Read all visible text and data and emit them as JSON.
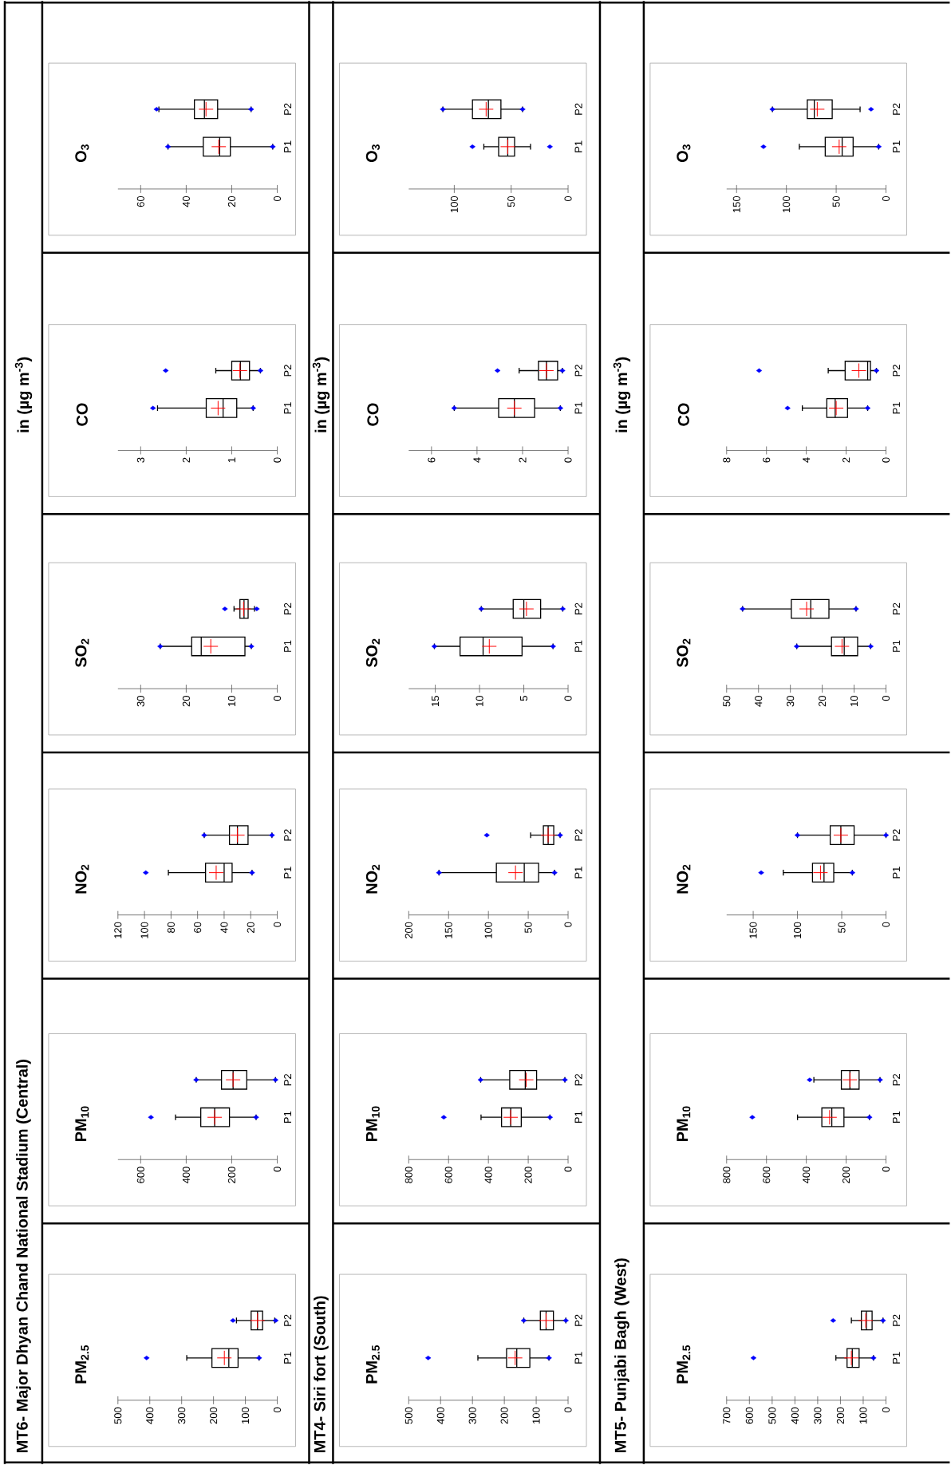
{
  "chart_data": [
    {
      "type": "box",
      "orientation": "horizontal",
      "title": "PM$_{2.5}$",
      "annotations": [
        "MT6- Major Dhyan Chand National Stadium (Central)",
        "in (µg m$^{-3}$)"
      ],
      "categories": [
        "P2",
        "P1"
      ],
      "xlim": [
        500,
        0
      ],
      "xticks": [
        0,
        100,
        200,
        300,
        400,
        500
      ],
      "boxes": [
        {
          "low": 8,
          "q1": 46,
          "median": 62,
          "q3": 82,
          "high": 128,
          "mean": 62,
          "outliers": [
            139,
            5
          ]
        },
        {
          "low": 57,
          "q1": 123,
          "median": 152,
          "q3": 205,
          "high": 284,
          "mean": 166,
          "outliers": [
            410,
            57
          ]
        }
      ]
    },
    {
      "type": "box",
      "orientation": "horizontal",
      "title": "PM$_{10}$",
      "categories": [
        "P2",
        "P1"
      ],
      "xlim": [
        700,
        0
      ],
      "xticks": [
        0,
        200,
        400,
        600
      ],
      "boxes": [
        {
          "low": 8,
          "q1": 134,
          "median": 194,
          "q3": 245,
          "high": 356,
          "mean": 194,
          "outliers": [
            356,
            8
          ]
        },
        {
          "low": 93,
          "q1": 210,
          "median": 275,
          "q3": 336,
          "high": 447,
          "mean": 275,
          "outliers": [
            555,
            93
          ]
        }
      ]
    },
    {
      "type": "box",
      "orientation": "horizontal",
      "title": "NO$_{2}$",
      "categories": [
        "P2",
        "P1"
      ],
      "xlim": [
        120,
        0
      ],
      "xticks": [
        0,
        20,
        40,
        60,
        80,
        100,
        120
      ],
      "boxes": [
        {
          "low": 4,
          "q1": 22,
          "median": 30,
          "q3": 36,
          "high": 55,
          "mean": 30,
          "outliers": [
            55,
            4
          ]
        },
        {
          "low": 19,
          "q1": 34,
          "median": 40,
          "q3": 54,
          "high": 82,
          "mean": 46,
          "outliers": [
            99,
            19
          ]
        }
      ]
    },
    {
      "type": "box",
      "orientation": "horizontal",
      "title": "SO$_{2}$",
      "categories": [
        "P2",
        "P1"
      ],
      "xlim": [
        35,
        0
      ],
      "xticks": [
        0,
        10,
        20,
        30
      ],
      "boxes": [
        {
          "low": 5,
          "q1": 6.4,
          "median": 7.3,
          "q3": 8.2,
          "high": 9.5,
          "mean": 7.4,
          "outliers": [
            11.5,
            4.5
          ]
        },
        {
          "low": 5.7,
          "q1": 7.1,
          "median": 16.7,
          "q3": 18.8,
          "high": 25.7,
          "mean": 14.6,
          "outliers": [
            25.7,
            5.7
          ]
        }
      ]
    },
    {
      "type": "box",
      "orientation": "horizontal",
      "title": "CO",
      "categories": [
        "P2",
        "P1"
      ],
      "xlim": [
        3.5,
        0
      ],
      "xticks": [
        0,
        1,
        2,
        3
      ],
      "boxes": [
        {
          "low": 0.37,
          "q1": 0.61,
          "median": 0.81,
          "q3": 1.0,
          "high": 1.35,
          "mean": 0.82,
          "outliers": [
            2.45,
            0.37
          ]
        },
        {
          "low": 0.53,
          "q1": 0.89,
          "median": 1.19,
          "q3": 1.56,
          "high": 2.63,
          "mean": 1.3,
          "outliers": [
            2.73,
            0.53
          ]
        }
      ]
    },
    {
      "type": "box",
      "orientation": "horizontal",
      "title": "O$_{3}$",
      "categories": [
        "P2",
        "P1"
      ],
      "xlim": [
        70,
        0
      ],
      "xticks": [
        0,
        20,
        40,
        60
      ],
      "boxes": [
        {
          "low": 11.5,
          "q1": 26.2,
          "median": 32,
          "q3": 36.4,
          "high": 52,
          "mean": 31.3,
          "outliers": [
            53,
            11.5
          ]
        },
        {
          "low": 2,
          "q1": 20.6,
          "median": 25.3,
          "q3": 32.5,
          "high": 48,
          "mean": 25.7,
          "outliers": [
            48,
            2
          ]
        }
      ]
    },
    {
      "type": "box",
      "orientation": "horizontal",
      "title": "PM$_{2.5}$",
      "annotations": [
        "MT4- Siri fort (South)",
        "in (µg m$^{-3}$)"
      ],
      "categories": [
        "P2",
        "P1"
      ],
      "xlim": [
        500,
        0
      ],
      "xticks": [
        0,
        100,
        200,
        300,
        400,
        500
      ],
      "boxes": [
        {
          "low": 7,
          "q1": 46,
          "median": 69,
          "q3": 87,
          "high": 139,
          "mean": 69,
          "outliers": [
            139,
            7
          ]
        },
        {
          "low": 60,
          "q1": 120,
          "median": 161,
          "q3": 193,
          "high": 283,
          "mean": 166,
          "outliers": [
            439,
            60
          ]
        }
      ]
    },
    {
      "type": "box",
      "orientation": "horizontal",
      "title": "PM$_{10}$",
      "categories": [
        "P2",
        "P1"
      ],
      "xlim": [
        800,
        0
      ],
      "xticks": [
        0,
        200,
        400,
        600,
        800
      ],
      "boxes": [
        {
          "low": 16,
          "q1": 158,
          "median": 215,
          "q3": 293,
          "high": 439,
          "mean": 210,
          "outliers": [
            439,
            16
          ]
        },
        {
          "low": 91,
          "q1": 235,
          "median": 288,
          "q3": 334,
          "high": 437,
          "mean": 288,
          "outliers": [
            624,
            91
          ]
        }
      ]
    },
    {
      "type": "box",
      "orientation": "horizontal",
      "title": "NO$_{2}$",
      "categories": [
        "P2",
        "P1"
      ],
      "xlim": [
        200,
        0
      ],
      "xticks": [
        0,
        50,
        100,
        150,
        200
      ],
      "boxes": [
        {
          "low": 10,
          "q1": 18,
          "median": 25,
          "q3": 31,
          "high": 47,
          "mean": 25,
          "outliers": [
            102,
            10
          ]
        },
        {
          "low": 17,
          "q1": 37,
          "median": 55,
          "q3": 90,
          "high": 162,
          "mean": 66,
          "outliers": [
            162,
            17
          ]
        }
      ]
    },
    {
      "type": "box",
      "orientation": "horizontal",
      "title": "SO$_{2}$",
      "categories": [
        "P2",
        "P1"
      ],
      "xlim": [
        18,
        0
      ],
      "xticks": [
        0,
        5,
        10,
        15
      ],
      "boxes": [
        {
          "low": 0.6,
          "q1": 3.1,
          "median": 5.0,
          "q3": 6.2,
          "high": 9.8,
          "mean": 4.7,
          "outliers": [
            9.8,
            0.6
          ]
        },
        {
          "low": 1.7,
          "q1": 5.2,
          "median": 9.6,
          "q3": 12.2,
          "high": 15.1,
          "mean": 8.9,
          "outliers": [
            15.1,
            1.7
          ]
        }
      ]
    },
    {
      "type": "box",
      "orientation": "horizontal",
      "title": "CO",
      "categories": [
        "P2",
        "P1"
      ],
      "xlim": [
        7,
        0
      ],
      "xticks": [
        0,
        2,
        4,
        6
      ],
      "boxes": [
        {
          "low": 0.25,
          "q1": 0.46,
          "median": 0.95,
          "q3": 1.3,
          "high": 2.15,
          "mean": 0.95,
          "outliers": [
            3.1,
            0.25
          ]
        },
        {
          "low": 0.34,
          "q1": 1.47,
          "median": 2.36,
          "q3": 3.05,
          "high": 5.0,
          "mean": 2.36,
          "outliers": [
            5.0,
            0.34
          ]
        }
      ]
    },
    {
      "type": "box",
      "orientation": "horizontal",
      "title": "O$_{3}$",
      "categories": [
        "P2",
        "P1"
      ],
      "xlim": [
        140,
        0
      ],
      "xticks": [
        0,
        50,
        100
      ],
      "boxes": [
        {
          "low": 40,
          "q1": 59,
          "median": 70,
          "q3": 84,
          "high": 110,
          "mean": 72,
          "outliers": [
            110,
            40
          ]
        },
        {
          "low": 33,
          "q1": 47,
          "median": 53,
          "q3": 61,
          "high": 74,
          "mean": 53,
          "outliers": [
            84,
            16
          ]
        }
      ]
    },
    {
      "type": "box",
      "orientation": "horizontal",
      "title": "PM$_{2.5}$",
      "annotations": [
        "MT5- Punjabi Bagh (West)",
        "in (µg m$^{-3}$)"
      ],
      "categories": [
        "P2",
        "P1"
      ],
      "xlim": [
        700,
        0
      ],
      "xticks": [
        0,
        100,
        200,
        300,
        400,
        500,
        600,
        700
      ],
      "boxes": [
        {
          "low": 13,
          "q1": 61,
          "median": 86,
          "q3": 108,
          "high": 152,
          "mean": 89,
          "outliers": [
            232,
            13
          ]
        },
        {
          "low": 55,
          "q1": 118,
          "median": 148,
          "q3": 171,
          "high": 220,
          "mean": 152,
          "outliers": [
            582,
            55
          ]
        }
      ]
    },
    {
      "type": "box",
      "orientation": "horizontal",
      "title": "PM$_{10}$",
      "categories": [
        "P2",
        "P1"
      ],
      "xlim": [
        800,
        0
      ],
      "xticks": [
        0,
        200,
        400,
        600,
        800
      ],
      "boxes": [
        {
          "low": 30,
          "q1": 135,
          "median": 181,
          "q3": 224,
          "high": 362,
          "mean": 181,
          "outliers": [
            383,
            30
          ]
        },
        {
          "low": 83,
          "q1": 211,
          "median": 272,
          "q3": 322,
          "high": 444,
          "mean": 283,
          "outliers": [
            671,
            83
          ]
        }
      ]
    },
    {
      "type": "box",
      "orientation": "horizontal",
      "title": "NO$_{2}$",
      "categories": [
        "P2",
        "P1"
      ],
      "xlim": [
        180,
        0
      ],
      "xticks": [
        0,
        50,
        100,
        150
      ],
      "boxes": [
        {
          "low": 0,
          "q1": 36,
          "median": 51,
          "q3": 63,
          "high": 100,
          "mean": 51,
          "outliers": [
            100,
            0
          ]
        },
        {
          "low": 38,
          "q1": 59,
          "median": 70,
          "q3": 83,
          "high": 116,
          "mean": 74,
          "outliers": [
            141,
            38
          ]
        }
      ]
    },
    {
      "type": "box",
      "orientation": "horizontal",
      "title": "SO$_{2}$",
      "categories": [
        "P2",
        "P1"
      ],
      "xlim": [
        50,
        0
      ],
      "xticks": [
        0,
        10,
        20,
        30,
        40,
        50
      ],
      "boxes": [
        {
          "low": 9.4,
          "q1": 17.9,
          "median": 23.6,
          "q3": 29.7,
          "high": 45,
          "mean": 24.9,
          "outliers": [
            45,
            9.4
          ]
        },
        {
          "low": 4.8,
          "q1": 8.9,
          "median": 13.1,
          "q3": 17.1,
          "high": 28,
          "mean": 13.8,
          "outliers": [
            28,
            4.8
          ]
        }
      ]
    },
    {
      "type": "box",
      "orientation": "horizontal",
      "title": "CO",
      "categories": [
        "P2",
        "P1"
      ],
      "xlim": [
        8,
        0
      ],
      "xticks": [
        0,
        2,
        4,
        6,
        8
      ],
      "boxes": [
        {
          "low": 0.48,
          "q1": 0.78,
          "median": 0.92,
          "q3": 2.05,
          "high": 2.9,
          "mean": 1.36,
          "outliers": [
            6.37,
            0.48
          ]
        },
        {
          "low": 0.92,
          "q1": 1.93,
          "median": 2.55,
          "q3": 2.97,
          "high": 4.2,
          "mean": 2.5,
          "outliers": [
            4.94,
            0.92
          ]
        }
      ]
    },
    {
      "type": "box",
      "orientation": "horizontal",
      "title": "O$_{3}$",
      "categories": [
        "P2",
        "P1"
      ],
      "xlim": [
        160,
        0
      ],
      "xticks": [
        0,
        50,
        100,
        150
      ],
      "boxes": [
        {
          "low": 26,
          "q1": 54,
          "median": 72,
          "q3": 79,
          "high": 114,
          "mean": 69,
          "outliers": [
            114,
            15
          ]
        },
        {
          "low": 7.3,
          "q1": 33,
          "median": 44,
          "q3": 61,
          "high": 87,
          "mean": 47,
          "outliers": [
            123,
            7.3
          ]
        }
      ]
    }
  ]
}
